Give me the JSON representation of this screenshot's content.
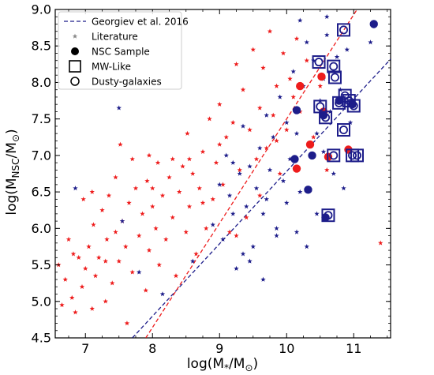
{
  "chart_data": {
    "type": "scatter",
    "xlabel": {
      "base": "log(M",
      "sub": "*",
      "tail": "/M",
      "sub2": "⊙",
      "close": ")"
    },
    "ylabel": {
      "base": "log(M",
      "sub": "NSC",
      "tail": "/M",
      "sub2": "⊙",
      "close": ")"
    },
    "xlim": [
      6.55,
      11.55
    ],
    "ylim": [
      4.5,
      9.0
    ],
    "xticks": [
      7,
      8,
      9,
      10,
      11
    ],
    "yticks": [
      4.5,
      5.0,
      5.5,
      6.0,
      6.5,
      7.0,
      7.5,
      8.0,
      8.5,
      9.0
    ],
    "ytick_labels": [
      "4.5",
      "5.0",
      "5.5",
      "6.0",
      "6.5",
      "7.0",
      "7.5",
      "8.0",
      "8.5",
      "9.0"
    ],
    "grid": false,
    "legend_position": "top-left",
    "colors": {
      "red": "#ee1c1c",
      "navy": "#1d1d8a",
      "fit_blue": "#1f1fb4",
      "fit_red": "#e8232a"
    },
    "legend": [
      {
        "label": "Georgiev et al. 2016",
        "marker": "dashed-line"
      },
      {
        "label": "Literature",
        "marker": "star"
      },
      {
        "label": "NSC Sample",
        "marker": "filled-circle"
      },
      {
        "label": "MW-Like",
        "marker": "open-square"
      },
      {
        "label": "Dusty-galaxies",
        "marker": "open-circle"
      }
    ],
    "series": [
      {
        "name": "Georgiev et al. 2016",
        "kind": "line",
        "color": "navy",
        "x": [
          7.7,
          11.55
        ],
        "y": [
          4.5,
          8.32
        ]
      },
      {
        "kind": "line",
        "color": "red",
        "x": [
          7.9,
          11.05
        ],
        "y": [
          4.5,
          9.0
        ]
      },
      {
        "name": "Literature",
        "kind": "star",
        "color": "red",
        "points": [
          [
            6.6,
            5.5
          ],
          [
            6.65,
            4.95
          ],
          [
            6.7,
            5.3
          ],
          [
            6.75,
            5.85
          ],
          [
            6.8,
            5.05
          ],
          [
            6.82,
            5.65
          ],
          [
            6.85,
            4.85
          ],
          [
            6.9,
            5.6
          ],
          [
            6.95,
            5.2
          ],
          [
            6.97,
            6.4
          ],
          [
            7.0,
            5.45
          ],
          [
            7.05,
            5.75
          ],
          [
            7.1,
            4.9
          ],
          [
            7.12,
            6.05
          ],
          [
            7.15,
            5.35
          ],
          [
            7.2,
            5.6
          ],
          [
            7.25,
            6.25
          ],
          [
            7.3,
            5.0
          ],
          [
            7.32,
            5.85
          ],
          [
            7.35,
            6.45
          ],
          [
            7.4,
            5.25
          ],
          [
            7.45,
            5.95
          ],
          [
            7.5,
            5.55
          ],
          [
            7.52,
            7.15
          ],
          [
            7.55,
            6.1
          ],
          [
            7.6,
            5.75
          ],
          [
            7.62,
            4.7
          ],
          [
            7.65,
            6.35
          ],
          [
            7.7,
            5.4
          ],
          [
            7.75,
            6.55
          ],
          [
            7.8,
            5.9
          ],
          [
            7.85,
            6.2
          ],
          [
            7.9,
            5.15
          ],
          [
            7.92,
            6.65
          ],
          [
            7.95,
            5.7
          ],
          [
            8.0,
            6.3
          ],
          [
            8.05,
            6.0
          ],
          [
            8.08,
            6.9
          ],
          [
            8.1,
            5.5
          ],
          [
            8.15,
            6.45
          ],
          [
            8.2,
            5.85
          ],
          [
            8.25,
            6.7
          ],
          [
            8.3,
            6.15
          ],
          [
            8.35,
            5.35
          ],
          [
            8.4,
            6.5
          ],
          [
            8.45,
            6.85
          ],
          [
            8.5,
            5.95
          ],
          [
            8.52,
            7.3
          ],
          [
            8.55,
            6.3
          ],
          [
            8.6,
            6.75
          ],
          [
            8.65,
            5.65
          ],
          [
            8.7,
            6.55
          ],
          [
            8.75,
            7.05
          ],
          [
            8.8,
            6.0
          ],
          [
            8.85,
            7.5
          ],
          [
            8.9,
            6.4
          ],
          [
            8.95,
            6.9
          ],
          [
            9.0,
            7.7
          ],
          [
            9.05,
            6.6
          ],
          [
            9.1,
            7.25
          ],
          [
            9.15,
            5.95
          ],
          [
            9.2,
            7.45
          ],
          [
            9.25,
            8.25
          ],
          [
            9.3,
            6.8
          ],
          [
            9.35,
            7.9
          ],
          [
            9.4,
            6.15
          ],
          [
            9.45,
            7.35
          ],
          [
            9.5,
            8.45
          ],
          [
            9.55,
            6.95
          ],
          [
            9.6,
            7.65
          ],
          [
            9.65,
            8.2
          ],
          [
            9.7,
            7.1
          ],
          [
            9.75,
            8.7
          ],
          [
            9.8,
            7.55
          ],
          [
            9.85,
            7.95
          ],
          [
            9.9,
            6.75
          ],
          [
            9.95,
            8.4
          ],
          [
            10.0,
            7.35
          ],
          [
            10.05,
            8.05
          ],
          [
            10.1,
            7.8
          ],
          [
            10.15,
            8.6
          ],
          [
            10.2,
            7.6
          ],
          [
            10.3,
            8.3
          ],
          [
            10.4,
            7.25
          ],
          [
            10.5,
            7.95
          ],
          [
            10.6,
            6.8
          ],
          [
            11.4,
            5.8
          ],
          [
            7.1,
            6.5
          ],
          [
            7.3,
            5.55
          ],
          [
            7.7,
            6.95
          ],
          [
            8.0,
            6.55
          ],
          [
            8.3,
            6.95
          ],
          [
            8.55,
            6.95
          ],
          [
            8.75,
            6.35
          ],
          [
            9.0,
            7.15
          ],
          [
            9.25,
            5.9
          ],
          [
            9.6,
            6.45
          ],
          [
            9.85,
            7.2
          ],
          [
            7.45,
            6.7
          ],
          [
            7.95,
            7.0
          ]
        ]
      },
      {
        "kind": "star",
        "color": "navy",
        "points": [
          [
            6.85,
            6.55
          ],
          [
            7.5,
            7.65
          ],
          [
            7.55,
            6.1
          ],
          [
            7.8,
            5.4
          ],
          [
            8.15,
            5.1
          ],
          [
            8.6,
            5.55
          ],
          [
            8.9,
            6.05
          ],
          [
            9.0,
            6.6
          ],
          [
            9.05,
            5.85
          ],
          [
            9.1,
            7.0
          ],
          [
            9.15,
            6.45
          ],
          [
            9.2,
            6.9
          ],
          [
            9.25,
            5.45
          ],
          [
            9.3,
            6.75
          ],
          [
            9.35,
            7.4
          ],
          [
            9.4,
            6.3
          ],
          [
            9.45,
            6.85
          ],
          [
            9.5,
            5.75
          ],
          [
            9.55,
            6.55
          ],
          [
            9.6,
            7.1
          ],
          [
            9.65,
            6.2
          ],
          [
            9.7,
            7.55
          ],
          [
            9.75,
            6.8
          ],
          [
            9.8,
            7.25
          ],
          [
            9.85,
            6.0
          ],
          [
            9.9,
            7.8
          ],
          [
            9.95,
            6.65
          ],
          [
            10.0,
            7.45
          ],
          [
            10.05,
            6.95
          ],
          [
            10.1,
            8.15
          ],
          [
            10.15,
            7.3
          ],
          [
            10.2,
            6.5
          ],
          [
            10.25,
            7.95
          ],
          [
            10.3,
            8.55
          ],
          [
            10.35,
            7.15
          ],
          [
            10.4,
            8.3
          ],
          [
            10.45,
            6.2
          ],
          [
            10.5,
            7.75
          ],
          [
            10.55,
            8.05
          ],
          [
            10.6,
            8.65
          ],
          [
            10.65,
            7.6
          ],
          [
            10.7,
            6.75
          ],
          [
            10.75,
            8.35
          ],
          [
            10.8,
            7.9
          ],
          [
            10.85,
            6.55
          ],
          [
            10.9,
            8.45
          ],
          [
            10.95,
            7.45
          ],
          [
            9.45,
            5.55
          ],
          [
            9.65,
            5.3
          ],
          [
            9.85,
            5.9
          ],
          [
            10.0,
            6.35
          ],
          [
            10.3,
            5.75
          ],
          [
            10.45,
            7.3
          ],
          [
            9.7,
            6.4
          ],
          [
            9.2,
            6.2
          ],
          [
            10.55,
            7.05
          ],
          [
            9.35,
            5.65
          ],
          [
            10.2,
            8.85
          ],
          [
            10.6,
            8.9
          ],
          [
            11.25,
            8.55
          ],
          [
            10.15,
            5.95
          ]
        ]
      },
      {
        "name": "NSC Sample",
        "kind": "filled-circle",
        "color": "red",
        "points": [
          [
            10.2,
            7.95
          ],
          [
            10.52,
            8.08
          ],
          [
            10.35,
            7.15
          ],
          [
            10.15,
            6.82
          ],
          [
            10.62,
            6.98
          ],
          [
            10.92,
            7.08
          ],
          [
            10.55,
            7.6
          ]
        ]
      },
      {
        "kind": "filled-circle",
        "color": "navy",
        "points": [
          [
            11.3,
            8.8
          ],
          [
            10.15,
            7.62
          ],
          [
            10.12,
            6.95
          ],
          [
            10.38,
            7.0
          ],
          [
            10.32,
            6.53
          ],
          [
            10.55,
            7.55
          ],
          [
            10.78,
            7.75
          ],
          [
            10.98,
            7.7
          ],
          [
            10.58,
            6.15
          ]
        ]
      },
      {
        "name": "MW-Like",
        "kind": "square-circle",
        "color": "navy",
        "points": [
          [
            10.48,
            8.28
          ],
          [
            10.85,
            8.72
          ],
          [
            10.7,
            8.22
          ],
          [
            10.72,
            8.07
          ],
          [
            10.5,
            7.67
          ],
          [
            10.58,
            7.52
          ],
          [
            10.78,
            7.72
          ],
          [
            10.87,
            7.82
          ],
          [
            10.93,
            7.75
          ],
          [
            11.0,
            7.68
          ],
          [
            10.85,
            7.35
          ],
          [
            10.7,
            7.0
          ],
          [
            10.98,
            7.0
          ],
          [
            11.05,
            7.0
          ],
          [
            10.62,
            6.18
          ]
        ]
      }
    ]
  }
}
